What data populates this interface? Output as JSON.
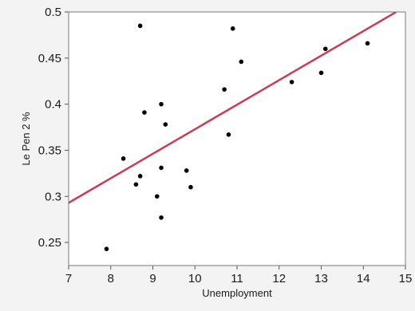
{
  "chart_data": {
    "type": "scatter",
    "title": "",
    "xlabel": "Unemployment",
    "ylabel": "Le Pen 2 %",
    "xlim": [
      7,
      15
    ],
    "ylim": [
      0.225,
      0.5
    ],
    "xticks": [
      7,
      8,
      9,
      10,
      11,
      12,
      13,
      14,
      15
    ],
    "yticks": [
      0.25,
      0.3,
      0.35,
      0.4,
      0.45,
      0.5
    ],
    "ytick_labels": [
      "0.25",
      "0.3",
      "0.35",
      "0.4",
      "0.45",
      "0.5"
    ],
    "grid": false,
    "points": [
      {
        "x": 7.9,
        "y": 0.243
      },
      {
        "x": 8.3,
        "y": 0.341
      },
      {
        "x": 8.6,
        "y": 0.313
      },
      {
        "x": 8.7,
        "y": 0.322
      },
      {
        "x": 8.7,
        "y": 0.485
      },
      {
        "x": 8.8,
        "y": 0.391
      },
      {
        "x": 9.1,
        "y": 0.3
      },
      {
        "x": 9.2,
        "y": 0.277
      },
      {
        "x": 9.2,
        "y": 0.331
      },
      {
        "x": 9.2,
        "y": 0.4
      },
      {
        "x": 9.3,
        "y": 0.378
      },
      {
        "x": 9.8,
        "y": 0.328
      },
      {
        "x": 9.9,
        "y": 0.31
      },
      {
        "x": 10.7,
        "y": 0.416
      },
      {
        "x": 10.8,
        "y": 0.367
      },
      {
        "x": 10.9,
        "y": 0.482
      },
      {
        "x": 11.1,
        "y": 0.446
      },
      {
        "x": 12.3,
        "y": 0.424
      },
      {
        "x": 13.0,
        "y": 0.434
      },
      {
        "x": 13.1,
        "y": 0.46
      },
      {
        "x": 14.1,
        "y": 0.466
      }
    ],
    "fit_line": {
      "x": [
        7,
        14.78
      ],
      "y": [
        0.293,
        0.5
      ],
      "color": "#cc3b54"
    },
    "point_color": "#000000"
  }
}
